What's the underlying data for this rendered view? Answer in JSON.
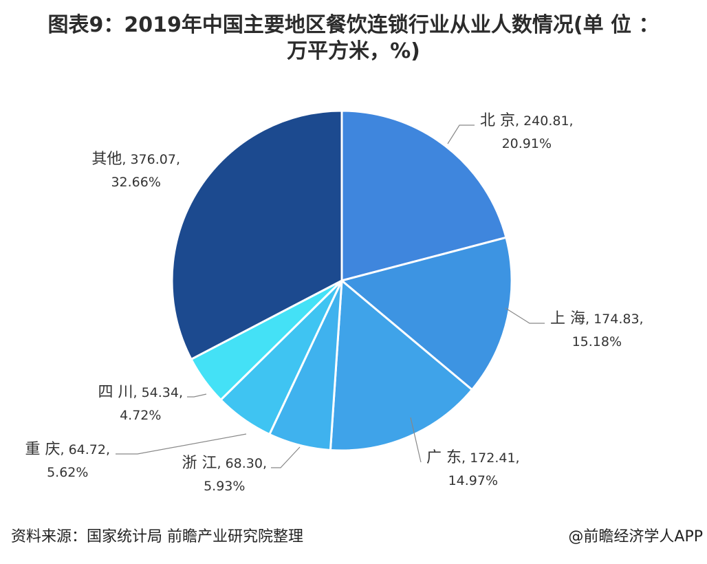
{
  "chart_data": {
    "type": "pie",
    "title": "图表9：2019年中国主要地区餐饮连锁行业从业人数情况(单 位 ：万平方米，%)",
    "title_lines": [
      "图表9：2019年中国主要地区餐饮连锁行业从业人数情况(单 位 ：",
      "万平方米，%)"
    ],
    "start": "12 o'clock",
    "direction": "clockwise",
    "slices": [
      {
        "label": "北 京",
        "value": 240.81,
        "value_text": "240.81",
        "percent": "20.91%",
        "color": "#3f86dd"
      },
      {
        "label": "上 海",
        "value": 174.83,
        "value_text": "174.83",
        "percent": "15.18%",
        "color": "#3d94e2"
      },
      {
        "label": "广 东",
        "value": 172.41,
        "value_text": "172.41",
        "percent": "14.97%",
        "color": "#3fa3e9"
      },
      {
        "label": "浙 江",
        "value": 68.3,
        "value_text": "68.30",
        "percent": "5.93%",
        "color": "#3fb2ee"
      },
      {
        "label": "重 庆",
        "value": 64.72,
        "value_text": "64.72",
        "percent": "5.62%",
        "color": "#3fc4f2"
      },
      {
        "label": "四 川",
        "value": 54.34,
        "value_text": "54.34",
        "percent": "4.72%",
        "color": "#44e1f6"
      },
      {
        "label": "其他",
        "value": 376.07,
        "value_text": "376.07",
        "percent": "32.66%",
        "color": "#1c4a8f"
      }
    ]
  },
  "footer": {
    "source": "资料来源：国家统计局 前瞻产业研究院整理",
    "credit": "@前瞻经济学人APP"
  }
}
